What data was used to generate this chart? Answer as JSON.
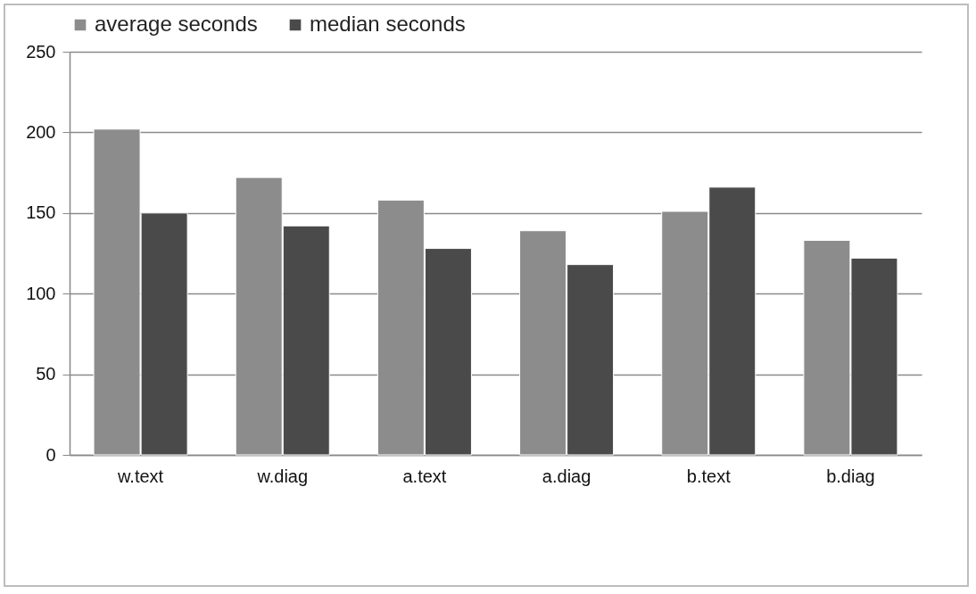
{
  "chart_data": {
    "type": "bar",
    "categories": [
      "w.text",
      "w.diag",
      "a.text",
      "a.diag",
      "b.text",
      "b.diag"
    ],
    "series": [
      {
        "name": "average seconds",
        "color": "#8c8c8c",
        "values": [
          202,
          172,
          158,
          139,
          151,
          133
        ]
      },
      {
        "name": "median seconds",
        "color": "#4a4a4a",
        "values": [
          150,
          142,
          128,
          118,
          166,
          122
        ]
      }
    ],
    "ylim": [
      0,
      250
    ],
    "yticks": [
      0,
      50,
      100,
      150,
      200,
      250
    ],
    "grid": "y",
    "legend": "top"
  }
}
